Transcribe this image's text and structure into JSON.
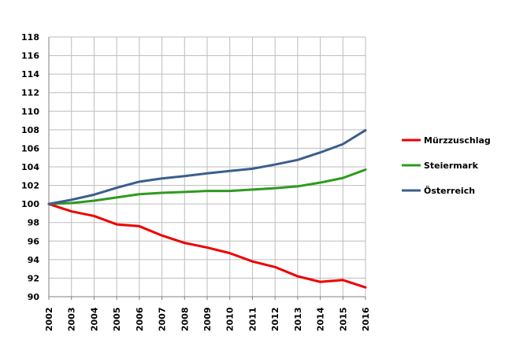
{
  "chart_data": {
    "type": "line",
    "title": "",
    "xlabel": "",
    "ylabel": "",
    "x": [
      "2002",
      "2003",
      "2004",
      "2005",
      "2006",
      "2007",
      "2008",
      "2009",
      "2010",
      "2011",
      "2012",
      "2013",
      "2014",
      "2015",
      "2016"
    ],
    "y_ticks": [
      "90",
      "92",
      "94",
      "96",
      "98",
      "100",
      "102",
      "104",
      "106",
      "108",
      "110",
      "112",
      "114",
      "116",
      "118"
    ],
    "ylim": [
      90,
      118
    ],
    "grid": true,
    "legend_position": "right",
    "series": [
      {
        "name": "Mürzzuschlag",
        "color": "#ee0000",
        "values": [
          100.0,
          99.2,
          98.7,
          97.8,
          97.6,
          96.6,
          95.8,
          95.3,
          94.7,
          93.8,
          93.2,
          92.2,
          91.6,
          91.8,
          91.0
        ]
      },
      {
        "name": "Steiermark",
        "color": "#2e9a1f",
        "values": [
          100.0,
          100.1,
          100.35,
          100.7,
          101.05,
          101.2,
          101.3,
          101.4,
          101.4,
          101.55,
          101.7,
          101.9,
          102.3,
          102.8,
          103.7
        ]
      },
      {
        "name": "Österreich",
        "color": "#3b5e8c",
        "values": [
          100.0,
          100.45,
          101.0,
          101.75,
          102.4,
          102.75,
          103.0,
          103.3,
          103.55,
          103.8,
          104.25,
          104.75,
          105.55,
          106.45,
          107.95
        ]
      }
    ]
  }
}
